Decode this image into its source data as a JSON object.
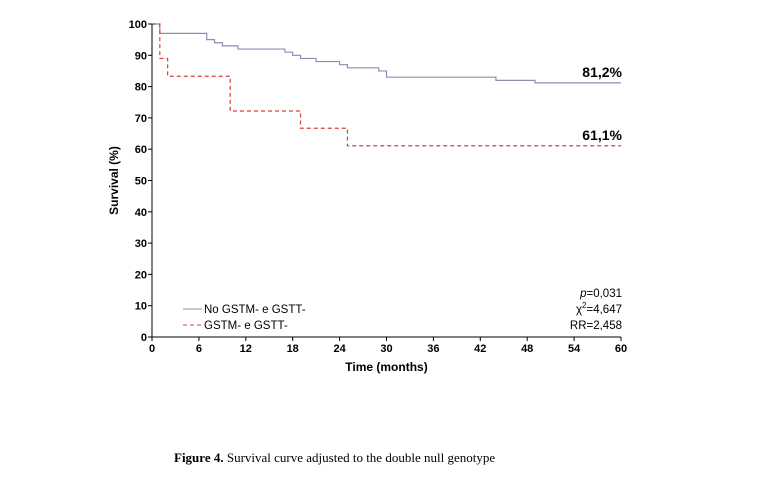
{
  "chart_data": {
    "type": "line",
    "xlabel": "Time (months)",
    "ylabel": "Survival (%)",
    "xlim": [
      0,
      60
    ],
    "ylim": [
      0,
      100
    ],
    "x_ticks": [
      0,
      6,
      12,
      18,
      24,
      30,
      36,
      42,
      48,
      54,
      60
    ],
    "y_ticks": [
      0,
      10,
      20,
      30,
      40,
      50,
      60,
      70,
      80,
      90,
      100
    ],
    "grid": false,
    "legend_position": "bottom-left",
    "series": [
      {
        "name": "No GSTM- e GSTT-",
        "color": "#8a8fb3",
        "style": "solid",
        "end_label": "81,2%",
        "x": [
          0,
          1,
          4,
          7,
          8,
          9,
          10,
          11,
          13,
          17,
          18,
          19,
          21,
          24,
          25,
          29,
          30,
          44,
          49,
          60
        ],
        "y": [
          100,
          97,
          97,
          95,
          94,
          93,
          93,
          92,
          92,
          91,
          90,
          89,
          88,
          87,
          86,
          85,
          83,
          82,
          81.2,
          81.2
        ]
      },
      {
        "name": "GSTM- e GSTT-",
        "color": "#d9403a",
        "style": "dashed",
        "end_label": "61,1%",
        "x": [
          0,
          1,
          2,
          10,
          19,
          25,
          60
        ],
        "y": [
          100,
          89,
          83.3,
          72.2,
          66.7,
          61.1,
          61.1
        ]
      }
    ],
    "annotations": {
      "p_label": "p",
      "p_value": "=0,031",
      "chi_symbol": "χ",
      "chi_sup": "2",
      "chi_value": "=4,647",
      "rr": "RR=2,458"
    }
  },
  "caption": {
    "label": "Figure 4.",
    "text": " Survival curve adjusted to the double null genotype"
  }
}
